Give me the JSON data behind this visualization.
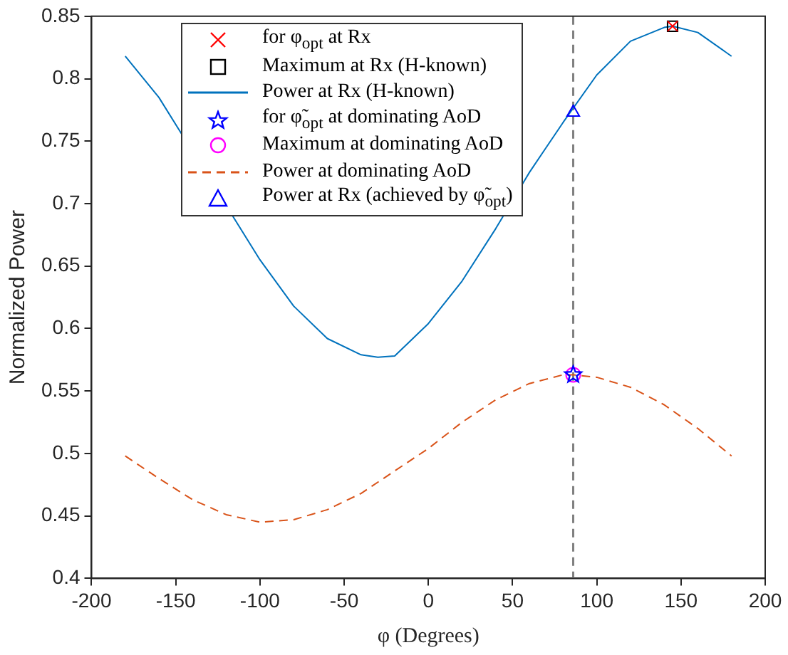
{
  "chart_data": {
    "type": "line",
    "xlabel": "φ (Degrees)",
    "ylabel": "Normalized Power",
    "xlim": [
      -200,
      200
    ],
    "xticks": [
      -200,
      -150,
      -100,
      -50,
      0,
      50,
      100,
      150,
      200
    ],
    "ylim": [
      0.4,
      0.85
    ],
    "yticks": [
      0.4,
      0.45,
      0.5,
      0.55,
      0.6,
      0.65,
      0.7,
      0.75,
      0.8,
      0.85
    ],
    "grid": false,
    "legend": "top",
    "series": [
      {
        "name": "for φ$_{opt}$ at Rx",
        "type": "scatter",
        "marker": "cross",
        "color": "#ff0000",
        "x": [
          145
        ],
        "values": [
          0.842
        ]
      },
      {
        "name": "Maximum at Rx (H-known)",
        "type": "scatter",
        "marker": "square",
        "color": "#000000",
        "x": [
          145
        ],
        "values": [
          0.842
        ]
      },
      {
        "name": "Power at Rx (H-known)",
        "line_style": "solid",
        "color": "#0072bd",
        "x": [
          -180,
          -160,
          -140,
          -120,
          -100,
          -80,
          -60,
          -40,
          -30,
          -20,
          0,
          20,
          40,
          60,
          80,
          100,
          120,
          140,
          145,
          160,
          180
        ],
        "values": [
          0.818,
          0.785,
          null,
          null,
          0.655,
          0.618,
          0.592,
          0.579,
          0.577,
          0.578,
          0.604,
          0.638,
          0.68,
          0.725,
          0.765,
          0.803,
          0.83,
          0.841,
          0.842,
          0.837,
          0.818
        ]
      },
      {
        "name": "for φ̃$_{opt}$ at dominating AoD",
        "type": "scatter",
        "marker": "star",
        "color": "#0000ff",
        "x": [
          86
        ],
        "values": [
          0.563
        ]
      },
      {
        "name": "Maximum at dominating AoD",
        "type": "scatter",
        "marker": "circle",
        "color": "#ff00ff",
        "x": [
          86
        ],
        "values": [
          0.563
        ]
      },
      {
        "name": "Power at dominating AoD",
        "line_style": "dashed",
        "color": "#d95319",
        "x": [
          -180,
          -160,
          -140,
          -120,
          -100,
          -80,
          -60,
          -40,
          -20,
          0,
          20,
          40,
          60,
          80,
          86,
          100,
          120,
          140,
          160,
          180
        ],
        "values": [
          0.498,
          0.48,
          0.463,
          0.451,
          0.445,
          0.447,
          0.455,
          0.468,
          0.486,
          0.504,
          0.525,
          0.543,
          0.556,
          0.563,
          0.563,
          0.561,
          0.553,
          0.539,
          0.52,
          0.498
        ]
      },
      {
        "name": "Power at Rx (achieved by φ̃$_{opt}$)",
        "type": "scatter",
        "marker": "triangle",
        "color": "#0000ff",
        "x": [
          86
        ],
        "values": [
          0.773
        ]
      }
    ],
    "ref_lines": [
      {
        "axis": "x",
        "value": 86,
        "color": "#808080",
        "line_style": "dashed"
      }
    ]
  }
}
